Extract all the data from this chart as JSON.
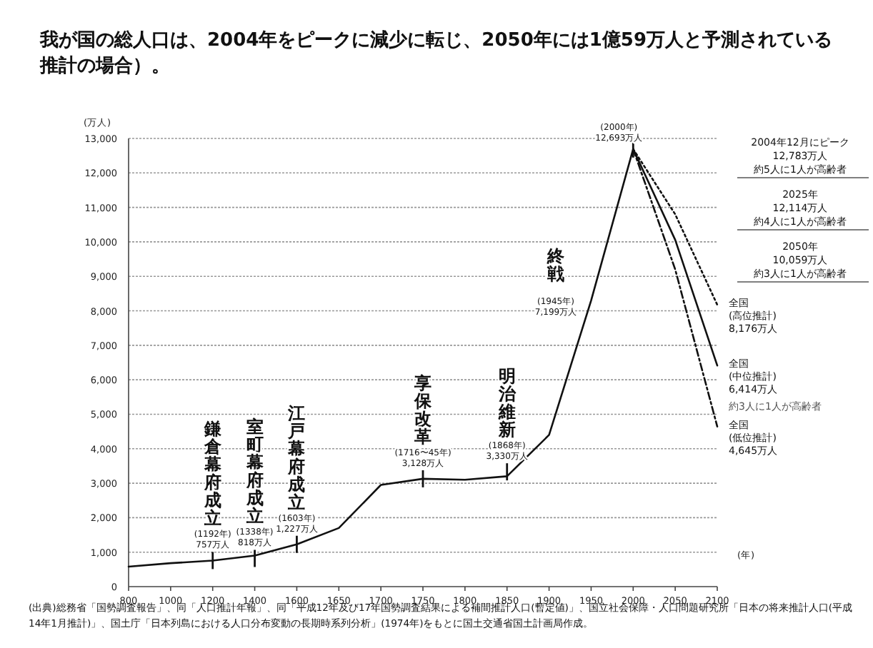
{
  "chart_data": {
    "type": "line",
    "title": "我が国の総人口は、2004年をピークに減少に転じ、2050年には1億59万人と予測されている推計の場合）。",
    "ylabel": "(万人)",
    "xlabel": "(年)",
    "categories": [
      "800",
      "1000",
      "1200",
      "1400",
      "1600",
      "1650",
      "1700",
      "1750",
      "1800",
      "1850",
      "1900",
      "1950",
      "2000",
      "2050",
      "2100"
    ],
    "series": [
      {
        "color": "#111111",
        "line_style": "solid",
        "values": [
          580,
          680,
          757,
          900,
          1227,
          1700,
          2950,
          3128,
          3100,
          3200,
          4400,
          8300,
          12693,
          10059,
          6414
        ]
      },
      {
        "color": "#111111",
        "line_style": "dotted",
        "values": [
          null,
          null,
          null,
          null,
          null,
          null,
          null,
          null,
          null,
          null,
          null,
          null,
          12693,
          10800,
          8176
        ]
      },
      {
        "color": "#111111",
        "line_style": "dashed",
        "values": [
          null,
          null,
          null,
          null,
          null,
          null,
          null,
          null,
          null,
          null,
          null,
          null,
          12693,
          9200,
          4645
        ]
      }
    ],
    "ylim": [
      0,
      13000
    ],
    "yticks": [
      0,
      {
        "value": 1000,
        "label": "1,000"
      },
      {
        "value": 2000,
        "label": "2,000"
      },
      {
        "value": 3000,
        "label": "3,000"
      },
      {
        "value": 4000,
        "label": "4,000"
      },
      {
        "value": 5000,
        "label": "5,000"
      },
      {
        "value": 6000,
        "label": "6,000"
      },
      {
        "value": 7000,
        "label": "7,000"
      },
      {
        "value": 8000,
        "label": "8,000"
      },
      {
        "value": 9000,
        "label": "9,000"
      },
      {
        "value": 10000,
        "label": "10,000"
      },
      {
        "value": 11000,
        "label": "11,000"
      },
      {
        "value": 12000,
        "label": "12,000"
      },
      {
        "value": 13000,
        "label": "13,000"
      }
    ],
    "grid": "y",
    "annotations": [
      {
        "text": "鎌倉幕府成立",
        "x": "1200",
        "y": 757
      },
      {
        "text": "(1192年)\n757万人",
        "x": "1200",
        "y": 757
      },
      {
        "text": "室町幕府成立",
        "x": "1400",
        "y": 818
      },
      {
        "text": "(1338年)\n818万人",
        "x": "1400",
        "y": 818
      },
      {
        "text": "江戸幕府成立",
        "x": "1600",
        "y": 1227
      },
      {
        "text": "(1603年)\n1,227万人",
        "x": "1600",
        "y": 1227
      },
      {
        "text": "享保改革",
        "x": "1750",
        "y": 3128
      },
      {
        "text": "(1716〜45年)\n3,128万人",
        "x": "1750",
        "y": 3128
      },
      {
        "text": "明治維新",
        "x": "1850",
        "y": 3330
      },
      {
        "text": "(1868年)\n3,330万人",
        "x": "1850",
        "y": 3330
      },
      "終戦",
      "(1945年)\n7,199万人",
      {
        "text": "(2000年)\n12,693万人",
        "x": "2000",
        "y": 12693
      },
      "2004年12月にピーク\n12,783万人",
      "約5人に1人が高齢者",
      "2025年\n12,114万人",
      "約4人に1人が高齢者",
      "2050年\n10,059万人",
      "約3人に1人が高齢者",
      {
        "text": "全国\n(高位推計)\n8,176万人",
        "x": "2100",
        "y": 8176
      },
      {
        "text": "全国\n(中位推計)\n6,414万人",
        "x": "2100",
        "y": 6414
      },
      "約3人に1人が高齢者",
      {
        "text": "全国\n(低位推計)\n4,645万人",
        "x": "2100",
        "y": 4645
      },
      "(出典)総務省「国勢調査報告」、同「人口推計年報」、同「平成12年及び17年国勢調査結果による補間推計人口(暫定値)」、国立社会保障・人口問題研究所「日本の将来推計人口(平成14年1月推計)」、国土庁「日本列島における人口分布変動の長期時系列分析」(1974年)をもとに国土交通省国土計画局作成。"
    ]
  }
}
